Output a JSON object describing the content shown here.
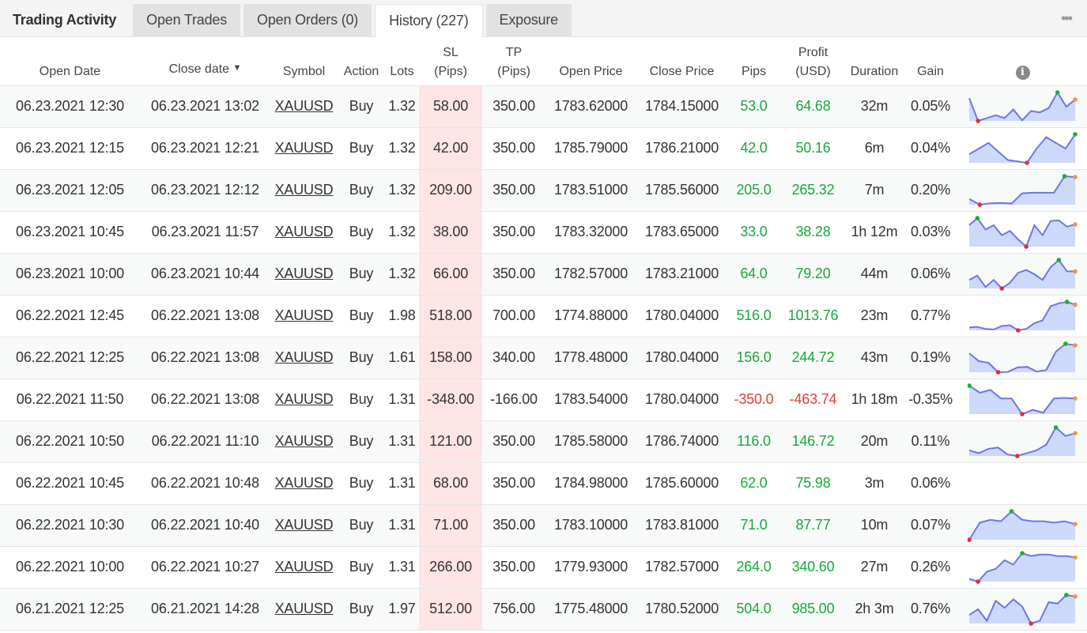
{
  "tabs": {
    "title": "Trading Activity",
    "items": [
      "Open Trades",
      "Open Orders (0)",
      "History (227)",
      "Exposure"
    ],
    "active": 2,
    "more": "•••"
  },
  "headers": {
    "open_date": "Open Date",
    "close_date": "Close date",
    "sort_arrow": "▼",
    "symbol": "Symbol",
    "action": "Action",
    "lots": "Lots",
    "sl1": "SL",
    "sl2": "(Pips)",
    "tp1": "TP",
    "tp2": "(Pips)",
    "open_price": "Open Price",
    "close_price": "Close Price",
    "pips": "Pips",
    "profit1": "Profit",
    "profit2": "(USD)",
    "duration": "Duration",
    "gain": "Gain",
    "info": "i"
  },
  "colors": {
    "positive": "#1aa83a",
    "negative": "#e53b3b",
    "sl_bg": "#fde5e6",
    "spark_line": "#6f74ee",
    "spark_fill": "#cdd9fb",
    "min_dot": "#ee2a2a",
    "max_dot": "#19b033",
    "last_dot": "#f5963a"
  },
  "rows": [
    {
      "open": "06.23.2021 12:30",
      "close": "06.23.2021 13:02",
      "symbol": "XAUUSD",
      "action": "Buy",
      "lots": "1.32",
      "sl": "58.00",
      "tp": "350.00",
      "open_price": "1783.62000",
      "close_price": "1784.15000",
      "pips": "53.0",
      "profit": "64.68",
      "duration": "32m",
      "gain": "0.05%",
      "spark": [
        0.8,
        0,
        0.1,
        0.2,
        0.1,
        0.4,
        0.02,
        0.35,
        0.3,
        0.45,
        1,
        0.5,
        0.75
      ]
    },
    {
      "open": "06.23.2021 12:15",
      "close": "06.23.2021 12:21",
      "symbol": "XAUUSD",
      "action": "Buy",
      "lots": "1.32",
      "sl": "42.00",
      "tp": "350.00",
      "open_price": "1785.79000",
      "close_price": "1786.21000",
      "pips": "42.0",
      "profit": "50.16",
      "duration": "6m",
      "gain": "0.04%",
      "spark": [
        0.3,
        0.5,
        0.7,
        0.4,
        0.1,
        0.05,
        0,
        0.5,
        0.9,
        0.7,
        0.5,
        1
      ]
    },
    {
      "open": "06.23.2021 12:05",
      "close": "06.23.2021 12:12",
      "symbol": "XAUUSD",
      "action": "Buy",
      "lots": "1.32",
      "sl": "209.00",
      "tp": "350.00",
      "open_price": "1783.51000",
      "close_price": "1785.56000",
      "pips": "205.0",
      "profit": "265.32",
      "duration": "7m",
      "gain": "0.20%",
      "spark": [
        0.2,
        0,
        0.05,
        0.06,
        0.04,
        0.4,
        0.42,
        0.42,
        0.42,
        1,
        0.97
      ]
    },
    {
      "open": "06.23.2021 10:45",
      "close": "06.23.2021 11:57",
      "symbol": "XAUUSD",
      "action": "Buy",
      "lots": "1.32",
      "sl": "38.00",
      "tp": "350.00",
      "open_price": "1783.32000",
      "close_price": "1783.65000",
      "pips": "33.0",
      "profit": "38.28",
      "duration": "1h 12m",
      "gain": "0.03%",
      "spark": [
        0.75,
        1,
        0.6,
        0.75,
        0.4,
        0.55,
        0.25,
        0,
        0.75,
        0.4,
        0.9,
        0.92,
        0.7,
        0.78
      ]
    },
    {
      "open": "06.23.2021 10:00",
      "close": "06.23.2021 10:44",
      "symbol": "XAUUSD",
      "action": "Buy",
      "lots": "1.32",
      "sl": "66.00",
      "tp": "350.00",
      "open_price": "1782.57000",
      "close_price": "1783.21000",
      "pips": "64.0",
      "profit": "79.20",
      "duration": "44m",
      "gain": "0.06%",
      "spark": [
        0.3,
        0.45,
        0.05,
        0.3,
        0,
        0.2,
        0.55,
        0.65,
        0.5,
        0.3,
        0.75,
        1,
        0.6,
        0.6
      ]
    },
    {
      "open": "06.22.2021 12:45",
      "close": "06.22.2021 13:08",
      "symbol": "XAUUSD",
      "action": "Buy",
      "lots": "1.98",
      "sl": "518.00",
      "tp": "700.00",
      "open_price": "1774.88000",
      "close_price": "1780.04000",
      "pips": "516.0",
      "profit": "1013.76",
      "duration": "23m",
      "gain": "0.77%",
      "spark": [
        0.1,
        0.12,
        0.05,
        0.03,
        0.15,
        0.18,
        0,
        0.05,
        0.25,
        0.35,
        0.85,
        0.95,
        1,
        0.9
      ]
    },
    {
      "open": "06.22.2021 12:25",
      "close": "06.22.2021 13:08",
      "symbol": "XAUUSD",
      "action": "Buy",
      "lots": "1.61",
      "sl": "158.00",
      "tp": "340.00",
      "open_price": "1778.48000",
      "close_price": "1780.04000",
      "pips": "156.0",
      "profit": "244.72",
      "duration": "43m",
      "gain": "0.19%",
      "spark": [
        0.6,
        0.35,
        0.3,
        0,
        0.01,
        0.15,
        0.17,
        0.02,
        0.07,
        0.65,
        0.9,
        0.85
      ]
    },
    {
      "open": "06.22.2021 11:50",
      "close": "06.22.2021 13:08",
      "symbol": "XAUUSD",
      "action": "Buy",
      "lots": "1.31",
      "sl": "-348.00",
      "tp": "-166.00",
      "open_price": "1783.54000",
      "close_price": "1780.04000",
      "pips": "-350.0",
      "profit": "-463.74",
      "duration": "1h 18m",
      "gain": "-0.35%",
      "spark": [
        1,
        0.75,
        0.85,
        0.55,
        0.55,
        0,
        0.15,
        0.05,
        0.55,
        0.57,
        0.55
      ]
    },
    {
      "open": "06.22.2021 10:50",
      "close": "06.22.2021 11:10",
      "symbol": "XAUUSD",
      "action": "Buy",
      "lots": "1.31",
      "sl": "121.00",
      "tp": "350.00",
      "open_price": "1785.58000",
      "close_price": "1786.74000",
      "pips": "116.0",
      "profit": "146.72",
      "duration": "20m",
      "gain": "0.11%",
      "spark": [
        0.2,
        0.1,
        0.25,
        0.3,
        0.05,
        0,
        0.1,
        0.2,
        0.4,
        1,
        0.7,
        0.8
      ]
    },
    {
      "open": "06.22.2021 10:45",
      "close": "06.22.2021 10:48",
      "symbol": "XAUUSD",
      "action": "Buy",
      "lots": "1.31",
      "sl": "68.00",
      "tp": "350.00",
      "open_price": "1784.98000",
      "close_price": "1785.60000",
      "pips": "62.0",
      "profit": "75.98",
      "duration": "3m",
      "gain": "0.06%",
      "spark": []
    },
    {
      "open": "06.22.2021 10:30",
      "close": "06.22.2021 10:40",
      "symbol": "XAUUSD",
      "action": "Buy",
      "lots": "1.31",
      "sl": "71.00",
      "tp": "350.00",
      "open_price": "1783.10000",
      "close_price": "1783.81000",
      "pips": "71.0",
      "profit": "87.77",
      "duration": "10m",
      "gain": "0.07%",
      "spark": [
        0,
        0.6,
        0.7,
        0.65,
        1,
        0.7,
        0.65,
        0.65,
        0.6,
        0.65,
        0.55
      ]
    },
    {
      "open": "06.22.2021 10:00",
      "close": "06.22.2021 10:27",
      "symbol": "XAUUSD",
      "action": "Buy",
      "lots": "1.31",
      "sl": "266.00",
      "tp": "350.00",
      "open_price": "1779.93000",
      "close_price": "1782.57000",
      "pips": "264.0",
      "profit": "340.60",
      "duration": "27m",
      "gain": "0.26%",
      "spark": [
        0.1,
        0,
        0.35,
        0.45,
        0.75,
        0.6,
        1,
        0.9,
        0.95,
        0.95,
        0.9,
        0.9,
        0.85
      ]
    },
    {
      "open": "06.21.2021 12:25",
      "close": "06.21.2021 14:28",
      "symbol": "XAUUSD",
      "action": "Buy",
      "lots": "1.97",
      "sl": "512.00",
      "tp": "756.00",
      "open_price": "1775.48000",
      "close_price": "1780.52000",
      "pips": "504.0",
      "profit": "985.00",
      "duration": "2h 3m",
      "gain": "0.76%",
      "spark": [
        0.3,
        0.5,
        0.1,
        0.8,
        0.55,
        0.85,
        0.6,
        0,
        0.1,
        0.75,
        0.7,
        1,
        0.95
      ]
    }
  ]
}
